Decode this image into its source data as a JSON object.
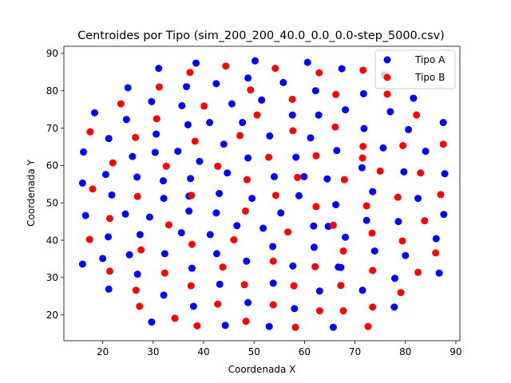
{
  "chart_data": {
    "type": "scatter",
    "title": "Centroides por Tipo (sim_200_200_40.0_0.0_0.0-step_5000.csv)",
    "xlabel": "Coordenada X",
    "ylabel": "Coordenada Y",
    "xlim": [
      12.3,
      90.8
    ],
    "ylim": [
      13.1,
      91.9
    ],
    "xticks": [
      20,
      30,
      40,
      50,
      60,
      70,
      80,
      90
    ],
    "yticks": [
      20,
      30,
      40,
      50,
      60,
      70,
      80,
      90
    ],
    "legend_position": "top-right",
    "series": [
      {
        "name": "Tipo A",
        "color": "#0000ff",
        "points": [
          [
            38.5,
            87.4
          ],
          [
            31.1,
            86.0
          ],
          [
            50.2,
            88.0
          ],
          [
            60.6,
            87.6
          ],
          [
            67.4,
            85.9
          ],
          [
            75.8,
            84.2
          ],
          [
            25.0,
            80.8
          ],
          [
            36.6,
            81.1
          ],
          [
            42.5,
            81.9
          ],
          [
            48.8,
            83.4
          ],
          [
            55.8,
            82.2
          ],
          [
            62.2,
            80.0
          ],
          [
            71.7,
            79.2
          ],
          [
            81.6,
            78.0
          ],
          [
            18.4,
            74.1
          ],
          [
            29.7,
            77.1
          ],
          [
            35.7,
            76.0
          ],
          [
            45.6,
            76.5
          ],
          [
            51.5,
            77.5
          ],
          [
            57.6,
            73.5
          ],
          [
            62.8,
            73.5
          ],
          [
            68.1,
            74.9
          ],
          [
            77.0,
            74.4
          ],
          [
            24.7,
            72.3
          ],
          [
            21.2,
            67.2
          ],
          [
            30.6,
            68.4
          ],
          [
            36.9,
            70.9
          ],
          [
            41.2,
            71.5
          ],
          [
            47.7,
            71.5
          ],
          [
            53.1,
            67.9
          ],
          [
            61.2,
            67.4
          ],
          [
            71.8,
            69.9
          ],
          [
            80.6,
            69.6
          ],
          [
            87.5,
            71.5
          ],
          [
            16.2,
            63.6
          ],
          [
            25.9,
            62.4
          ],
          [
            30.4,
            63.5
          ],
          [
            34.9,
            63.8
          ],
          [
            39.2,
            61.1
          ],
          [
            44.0,
            65.7
          ],
          [
            48.8,
            62.0
          ],
          [
            58.3,
            62.2
          ],
          [
            66.4,
            64.0
          ],
          [
            75.6,
            64.7
          ],
          [
            84.0,
            63.8
          ],
          [
            20.6,
            57.6
          ],
          [
            26.8,
            56.9
          ],
          [
            32.0,
            55.9
          ],
          [
            37.4,
            56.5
          ],
          [
            44.7,
            58.0
          ],
          [
            54.0,
            57.0
          ],
          [
            59.9,
            57.0
          ],
          [
            64.5,
            56.4
          ],
          [
            71.4,
            59.4
          ],
          [
            79.7,
            58.3
          ],
          [
            87.8,
            57.8
          ],
          [
            16.0,
            55.3
          ],
          [
            21.8,
            52.1
          ],
          [
            32.1,
            51.2
          ],
          [
            37.1,
            51.8
          ],
          [
            43.1,
            52.5
          ],
          [
            49.6,
            51.2
          ],
          [
            58.9,
            51.9
          ],
          [
            66.2,
            49.5
          ],
          [
            73.5,
            53.0
          ],
          [
            82.5,
            51.2
          ],
          [
            16.6,
            46.6
          ],
          [
            24.5,
            47.0
          ],
          [
            29.3,
            46.2
          ],
          [
            37.1,
            47.8
          ],
          [
            42.5,
            47.3
          ],
          [
            55.3,
            47.3
          ],
          [
            64.7,
            43.7
          ],
          [
            72.3,
            45.3
          ],
          [
            78.6,
            45.0
          ],
          [
            87.6,
            46.9
          ],
          [
            21.1,
            40.9
          ],
          [
            27.4,
            41.5
          ],
          [
            35.6,
            42.0
          ],
          [
            41.3,
            41.5
          ],
          [
            46.6,
            43.9
          ],
          [
            51.8,
            43.2
          ],
          [
            61.8,
            43.8
          ],
          [
            68.1,
            40.8
          ],
          [
            86.1,
            40.4
          ],
          [
            20.0,
            35.1
          ],
          [
            25.3,
            36.1
          ],
          [
            32.3,
            36.4
          ],
          [
            37.7,
            32.5
          ],
          [
            42.6,
            36.4
          ],
          [
            48.5,
            34.4
          ],
          [
            53.7,
            38.3
          ],
          [
            57.7,
            33.1
          ],
          [
            61.9,
            38.1
          ],
          [
            67.2,
            32.7
          ],
          [
            73.9,
            37.1
          ],
          [
            80.0,
            35.9
          ],
          [
            86.7,
            31.2
          ],
          [
            16.0,
            33.6
          ],
          [
            21.2,
            26.9
          ],
          [
            26.9,
            30.9
          ],
          [
            32.1,
            25.3
          ],
          [
            38.0,
            22.3
          ],
          [
            43.2,
            28.2
          ],
          [
            48.8,
            23.3
          ],
          [
            53.8,
            28.5
          ],
          [
            58.0,
            21.7
          ],
          [
            63.0,
            26.4
          ],
          [
            66.7,
            32.8
          ],
          [
            71.5,
            26.6
          ],
          [
            77.9,
            29.8
          ],
          [
            29.7,
            18.1
          ],
          [
            44.3,
            17.2
          ],
          [
            53.0,
            16.9
          ],
          [
            65.7,
            16.7
          ],
          [
            77.8,
            22.1
          ]
        ]
      },
      {
        "name": "Tipo B",
        "color": "#ff0000",
        "points": [
          [
            44.4,
            86.6
          ],
          [
            54.2,
            86.0
          ],
          [
            62.9,
            84.8
          ],
          [
            71.6,
            85.5
          ],
          [
            37.3,
            84.9
          ],
          [
            31.2,
            81.0
          ],
          [
            49.3,
            80.2
          ],
          [
            57.6,
            77.7
          ],
          [
            66.2,
            79.0
          ],
          [
            76.4,
            79.1
          ],
          [
            23.6,
            76.5
          ],
          [
            40.1,
            75.9
          ],
          [
            30.7,
            72.5
          ],
          [
            50.6,
            73.5
          ],
          [
            82.2,
            73.5
          ],
          [
            17.5,
            69.0
          ],
          [
            26.5,
            67.5
          ],
          [
            38.3,
            66.5
          ],
          [
            47.2,
            68.0
          ],
          [
            57.7,
            69.3
          ],
          [
            66.1,
            70.3
          ],
          [
            71.6,
            65.1
          ],
          [
            79.5,
            65.3
          ],
          [
            87.5,
            65.7
          ],
          [
            22.0,
            60.7
          ],
          [
            32.6,
            59.8
          ],
          [
            42.8,
            59.8
          ],
          [
            52.9,
            62.2
          ],
          [
            62.3,
            62.6
          ],
          [
            71.5,
            62.0
          ],
          [
            75.0,
            58.5
          ],
          [
            83.0,
            58.0
          ],
          [
            18.0,
            53.7
          ],
          [
            26.9,
            51.7
          ],
          [
            37.6,
            52.0
          ],
          [
            48.6,
            56.2
          ],
          [
            54.3,
            52.0
          ],
          [
            58.6,
            56.8
          ],
          [
            67.9,
            56.2
          ],
          [
            72.3,
            49.2
          ],
          [
            78.5,
            51.5
          ],
          [
            87.0,
            52.2
          ],
          [
            21.4,
            45.8
          ],
          [
            33.1,
            44.1
          ],
          [
            48.3,
            47.8
          ],
          [
            62.3,
            49.0
          ],
          [
            65.7,
            44.0
          ],
          [
            83.8,
            45.2
          ],
          [
            17.4,
            40.2
          ],
          [
            27.6,
            37.4
          ],
          [
            37.7,
            38.9
          ],
          [
            46.0,
            40.1
          ],
          [
            56.7,
            42.2
          ],
          [
            67.7,
            37.1
          ],
          [
            73.4,
            41.9
          ],
          [
            79.4,
            39.8
          ],
          [
            86.0,
            36.6
          ],
          [
            21.4,
            31.7
          ],
          [
            32.3,
            31.2
          ],
          [
            43.8,
            32.8
          ],
          [
            53.8,
            34.4
          ],
          [
            62.1,
            32.9
          ],
          [
            73.5,
            31.9
          ],
          [
            82.5,
            31.4
          ],
          [
            26.6,
            26.6
          ],
          [
            37.5,
            27.8
          ],
          [
            48.1,
            28.1
          ],
          [
            57.9,
            27.8
          ],
          [
            67.2,
            27.9
          ],
          [
            79.1,
            26.0
          ],
          [
            27.3,
            22.3
          ],
          [
            42.8,
            22.9
          ],
          [
            53.8,
            22.7
          ],
          [
            63.0,
            21.1
          ],
          [
            67.7,
            21.1
          ],
          [
            73.5,
            22.1
          ],
          [
            34.3,
            19.1
          ],
          [
            38.7,
            17.1
          ],
          [
            48.4,
            18.3
          ],
          [
            58.2,
            16.7
          ],
          [
            72.6,
            16.9
          ]
        ]
      }
    ]
  }
}
